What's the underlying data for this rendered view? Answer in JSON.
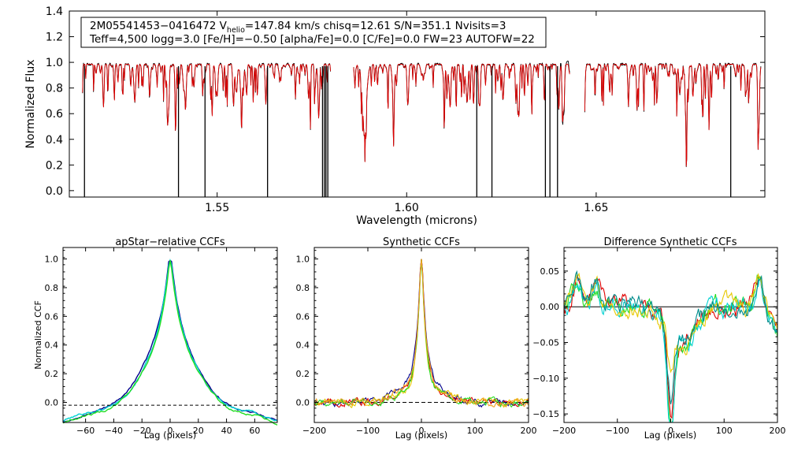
{
  "chart_data": [
    {
      "type": "line",
      "id": "spectrum",
      "title": "",
      "xlabel": "Wavelength (microns)",
      "ylabel": "Normalized Flux",
      "xlim": [
        1.511,
        1.6945
      ],
      "ylim": [
        -0.05,
        1.4
      ],
      "xticks": [
        1.55,
        1.6,
        1.65
      ],
      "xtick_labels": [
        "1.55",
        "1.60",
        "1.65"
      ],
      "yticks": [
        0.0,
        0.2,
        0.4,
        0.6,
        0.8,
        1.0,
        1.2,
        1.4
      ],
      "ytick_labels": [
        "0.0",
        "0.2",
        "0.4",
        "0.6",
        "0.8",
        "1.0",
        "1.2",
        "1.4"
      ],
      "annotation": {
        "line1_pre": "2M05541453−0416472  V",
        "line1_sub": "helio",
        "line1_post": "=147.84 km/s  chisq=12.61  S/N=351.1  Nvisits=3",
        "line2": "Teff=4,500 logg=3.0 [Fe/H]=−0.50 [alpha/Fe]=0.0 [C/Fe]=0.0 FW=23 AUTOFW=22"
      },
      "chips": [
        [
          1.5145,
          1.58
        ],
        [
          1.586,
          1.643
        ],
        [
          1.647,
          1.6935
        ]
      ],
      "bad_pixels": [
        1.515,
        1.5398,
        1.5468,
        1.5633,
        1.5778,
        1.5783,
        1.5787,
        1.5792,
        1.6185,
        1.6225,
        1.6366,
        1.6378,
        1.6398,
        1.6855
      ],
      "series": [
        {
          "name": "observed",
          "color": "#000000"
        },
        {
          "name": "model",
          "color": "#e00000"
        }
      ]
    },
    {
      "type": "line",
      "id": "apstar_ccf",
      "title": "apStar−relative CCFs",
      "xlabel": "Lag (pixels)",
      "ylabel": "Normalized CCF",
      "xlim": [
        -76,
        76
      ],
      "ylim": [
        -0.14,
        1.08
      ],
      "xticks": [
        -60,
        -40,
        -20,
        0,
        20,
        40,
        60
      ],
      "xtick_labels": [
        "−60",
        "−40",
        "−20",
        "0",
        "20",
        "40",
        "60"
      ],
      "yticks": [
        0.0,
        0.2,
        0.4,
        0.6,
        0.8,
        1.0
      ],
      "ytick_labels": [
        "0.0",
        "0.2",
        "0.4",
        "0.6",
        "0.8",
        "1.0"
      ],
      "series": [
        {
          "name": "visit1",
          "color": "#00008c",
          "width": 8.0,
          "amp": 0.16,
          "width2": 28,
          "offset": -0.03
        },
        {
          "name": "visit2",
          "color": "#00d2d2",
          "width": 7.5,
          "amp": 0.13,
          "width2": 26,
          "offset": -0.02
        },
        {
          "name": "visit3",
          "color": "#22dd22",
          "width": 7.6,
          "amp": 0.13,
          "width2": 26,
          "offset": -0.035
        }
      ]
    },
    {
      "type": "line",
      "id": "synthetic_ccf",
      "title": "Synthetic CCFs",
      "xlabel": "Lag (pixels)",
      "ylabel": "",
      "xlim": [
        -200,
        200
      ],
      "ylim": [
        -0.14,
        1.08
      ],
      "xticks": [
        -200,
        -100,
        0,
        100,
        200
      ],
      "xtick_labels": [
        "−200",
        "−100",
        "0",
        "100",
        "200"
      ],
      "yticks": [
        0.0,
        0.2,
        0.4,
        0.6,
        0.8,
        1.0
      ],
      "ytick_labels": [
        "0.0",
        "0.2",
        "0.4",
        "0.6",
        "0.8",
        "1.0"
      ],
      "reference_line_y": 0.0,
      "series": [
        {
          "name": "s1",
          "color": "#00008c",
          "width": 7,
          "amp": 0.17,
          "width2": 38
        },
        {
          "name": "s2",
          "color": "#e00000",
          "width": 7,
          "amp": 0.14,
          "width2": 36
        },
        {
          "name": "s3",
          "color": "#e6c800",
          "width": 7,
          "amp": 0.12,
          "width2": 40
        },
        {
          "name": "s4",
          "color": "#22dd22",
          "width": 7,
          "amp": 0.13,
          "width2": 34
        },
        {
          "name": "s5",
          "color": "#f0a020",
          "width": 6,
          "amp": 0.15,
          "width2": 36
        }
      ]
    },
    {
      "type": "line",
      "id": "difference_ccf",
      "title": "Difference Synthetic CCFs",
      "xlabel": "Lag (pixels)",
      "ylabel": "",
      "xlim": [
        -200,
        200
      ],
      "ylim": [
        -0.162,
        0.083
      ],
      "xticks": [
        -200,
        -100,
        0,
        100,
        200
      ],
      "xtick_labels": [
        "−200",
        "−100",
        "0",
        "100",
        "200"
      ],
      "yticks": [
        0.05,
        0.0,
        -0.05,
        -0.1,
        -0.15
      ],
      "ytick_labels": [
        "0.05",
        "0.00",
        "−0.05",
        "−0.10",
        "−0.15"
      ],
      "reference_line_y": 0.0,
      "series": [
        {
          "name": "d1",
          "color": "#e00000",
          "depth": -0.11,
          "seed": 3
        },
        {
          "name": "d2",
          "color": "#22dd22",
          "depth": -0.14,
          "seed": 7
        },
        {
          "name": "d3",
          "color": "#00d2d2",
          "depth": -0.155,
          "seed": 11
        },
        {
          "name": "d4",
          "color": "#e6c800",
          "depth": -0.06,
          "seed": 19
        },
        {
          "name": "d5",
          "color": "#008c8c",
          "depth": -0.09,
          "seed": 23
        }
      ]
    }
  ]
}
